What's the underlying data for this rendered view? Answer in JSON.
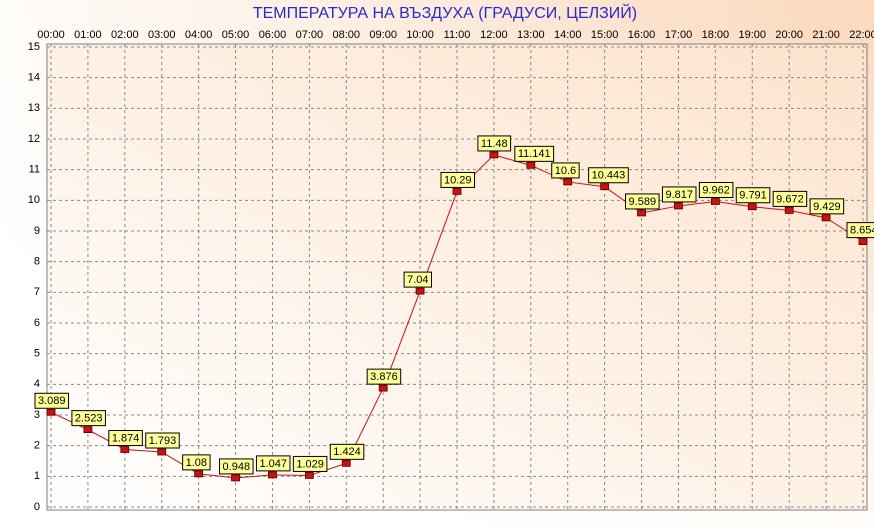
{
  "chart_data": {
    "type": "line",
    "title": "ТЕМПЕРАТУРА НА ВЪЗДУХА  (ГРАДУСИ, ЦЕЛЗИЙ)",
    "categories": [
      "00:00",
      "01:00",
      "02:00",
      "03:00",
      "04:00",
      "05:00",
      "06:00",
      "07:00",
      "08:00",
      "09:00",
      "10:00",
      "11:00",
      "12:00",
      "13:00",
      "14:00",
      "15:00",
      "16:00",
      "17:00",
      "18:00",
      "19:00",
      "20:00",
      "21:00",
      "22:00"
    ],
    "values": [
      3.089,
      2.523,
      1.874,
      1.793,
      1.08,
      0.948,
      1.047,
      1.029,
      1.424,
      3.876,
      7.04,
      10.29,
      11.48,
      11.141,
      10.6,
      10.443,
      9.589,
      9.817,
      9.962,
      9.791,
      9.672,
      9.429,
      8.654
    ],
    "color": "#cc1111",
    "label_color": "#ffff99",
    "ylim": [
      0,
      15
    ],
    "yticks": [
      0,
      1,
      2,
      3,
      4,
      5,
      6,
      7,
      8,
      9,
      10,
      11,
      12,
      13,
      14,
      15
    ],
    "grid": true
  }
}
